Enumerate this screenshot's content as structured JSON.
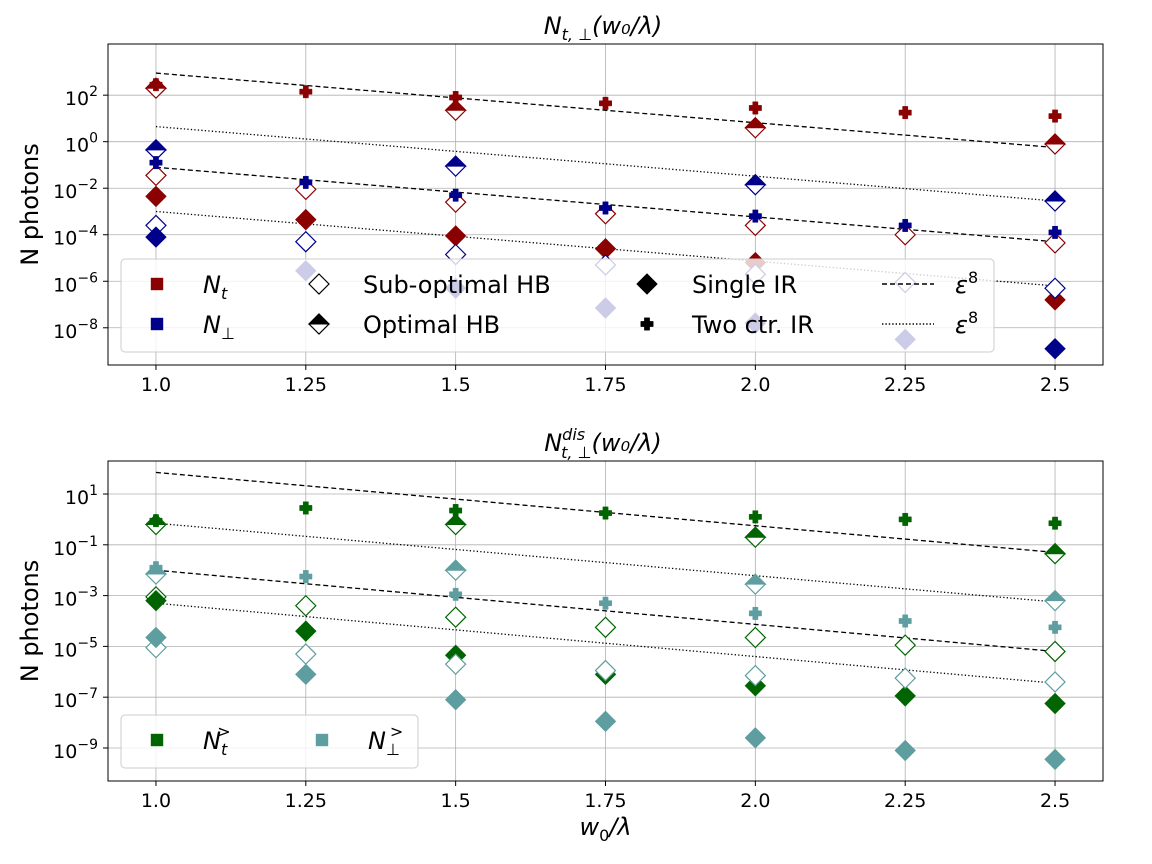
{
  "colors": {
    "t_color": "#8b0000",
    "perp_color": "#00008b",
    "t_dis_color": "#006400",
    "perp_dis_color": "#5f9ea0",
    "grid": "#b0b0b0"
  },
  "chart_data": [
    {
      "type": "scatter",
      "title": "N_{t,⊥}(w₀/λ)",
      "title_parts": {
        "main": "N",
        "sub": "t, ⊥",
        "rest": "(w₀/λ)"
      },
      "xlabel": "",
      "ylabel": "N photons",
      "xscale": "linear",
      "yscale": "log",
      "xlim": [
        0.92,
        2.58
      ],
      "ylim_log10": [
        -9.6,
        4.2
      ],
      "xticks": [
        1.0,
        1.25,
        1.5,
        1.75,
        2.0,
        2.25,
        2.5
      ],
      "xtick_labels": [
        "1.0",
        "1.25",
        "1.5",
        "1.75",
        "2.0",
        "2.25",
        "2.5"
      ],
      "yticks_log10": [
        -8,
        -6,
        -4,
        -2,
        0,
        2
      ],
      "ytick_labels": [
        "10",
        "10",
        "10",
        "10",
        "10",
        "10"
      ],
      "ytick_exponents": [
        "−8",
        "−6",
        "−4",
        "−2",
        "0",
        "2"
      ],
      "grid": true,
      "legend_position": "lower-center",
      "legend": [
        {
          "label": "N_t",
          "main": "N",
          "sub": "t",
          "sup": "",
          "marker": "square",
          "color": "#8b0000"
        },
        {
          "label": "N_⊥",
          "main": "N",
          "sub": "⊥",
          "sup": "",
          "marker": "square",
          "color": "#00008b"
        },
        {
          "label": "Sub-optimal HB",
          "main": "Sub-optimal HB",
          "sub": "",
          "sup": "",
          "marker": "diamond-open",
          "color": "#000000"
        },
        {
          "label": "Optimal HB",
          "main": "Optimal HB",
          "sub": "",
          "sup": "",
          "marker": "diamond-half",
          "color": "#000000"
        },
        {
          "label": "Single IR",
          "main": "Single IR",
          "sub": "",
          "sup": "",
          "marker": "diamond",
          "color": "#000000"
        },
        {
          "label": "Two ctr. IR",
          "main": "Two ctr. IR",
          "sub": "",
          "sup": "",
          "marker": "plus",
          "color": "#000000"
        },
        {
          "label": "ε^8",
          "main": "ε",
          "sub": "",
          "sup": "8",
          "marker": "dashed",
          "color": "#000000"
        },
        {
          "label": "ε^8",
          "main": "ε",
          "sub": "",
          "sup": "8",
          "marker": "dotted",
          "color": "#000000"
        }
      ],
      "series": [
        {
          "name": "N_t Optimal HB",
          "marker": "diamond-half",
          "color": "#8b0000",
          "x": [
            1.0,
            1.5,
            2.0,
            2.5
          ],
          "log10_y": [
            2.3,
            1.35,
            0.6,
            -0.1
          ]
        },
        {
          "name": "N_t Sub-optimal HB",
          "marker": "diamond-open",
          "color": "#8b0000",
          "x": [
            1.0,
            1.25,
            1.5,
            1.75,
            2.0,
            2.25,
            2.5
          ],
          "log10_y": [
            -1.45,
            -2.05,
            -2.6,
            -3.1,
            -3.6,
            -4.0,
            -4.35
          ]
        },
        {
          "name": "N_t Single IR",
          "marker": "diamond",
          "color": "#8b0000",
          "x": [
            1.0,
            1.25,
            1.5,
            1.75,
            2.0,
            2.5
          ],
          "log10_y": [
            -2.35,
            -3.35,
            -4.05,
            -4.6,
            -5.2,
            -6.8
          ]
        },
        {
          "name": "N_t Two ctr. IR",
          "marker": "plus",
          "color": "#8b0000",
          "x": [
            1.0,
            1.25,
            1.5,
            1.75,
            2.0,
            2.25,
            2.5
          ],
          "log10_y": [
            2.45,
            2.15,
            1.9,
            1.65,
            1.45,
            1.25,
            1.1
          ]
        },
        {
          "name": "N_⊥ Optimal HB",
          "marker": "diamond-half",
          "color": "#00008b",
          "x": [
            1.0,
            1.5,
            2.0,
            2.5
          ],
          "log10_y": [
            -0.35,
            -1.05,
            -1.85,
            -2.55
          ]
        },
        {
          "name": "N_⊥ Sub-optimal HB",
          "marker": "diamond-open",
          "color": "#00008b",
          "x": [
            1.0,
            1.25,
            1.5,
            1.75,
            2.0,
            2.25,
            2.5
          ],
          "log10_y": [
            -3.6,
            -4.3,
            -4.85,
            -5.3,
            -5.7,
            -6.05,
            -6.3
          ]
        },
        {
          "name": "N_⊥ Single IR",
          "marker": "diamond",
          "color": "#00008b",
          "x": [
            1.0,
            1.25,
            1.5,
            1.75,
            2.0,
            2.25,
            2.5
          ],
          "log10_y": [
            -4.1,
            -5.55,
            -6.3,
            -7.15,
            -7.8,
            -8.5,
            -8.9
          ]
        },
        {
          "name": "N_⊥ Two ctr. IR",
          "marker": "plus",
          "color": "#00008b",
          "x": [
            1.0,
            1.25,
            1.5,
            1.75,
            2.0,
            2.25,
            2.5
          ],
          "log10_y": [
            -0.9,
            -1.75,
            -2.3,
            -2.85,
            -3.2,
            -3.6,
            -3.9
          ]
        }
      ],
      "lines": [
        {
          "name": "ε^8 dashed upper",
          "style": "dashed",
          "x": [
            1.0,
            2.5
          ],
          "log10_y": [
            2.95,
            -0.25
          ]
        },
        {
          "name": "ε^8 dotted upper",
          "style": "dotted",
          "x": [
            1.0,
            2.5
          ],
          "log10_y": [
            0.65,
            -2.55
          ]
        },
        {
          "name": "ε^8 dashed lower",
          "style": "dashed",
          "x": [
            1.0,
            2.5
          ],
          "log10_y": [
            -1.1,
            -4.3
          ]
        },
        {
          "name": "ε^8 dotted lower",
          "style": "dotted",
          "x": [
            1.0,
            2.5
          ],
          "log10_y": [
            -3.0,
            -6.2
          ]
        }
      ]
    },
    {
      "type": "scatter",
      "title": "N^{dis}_{t,⊥}(w₀/λ)",
      "title_parts": {
        "main": "N",
        "sub": "t, ⊥",
        "sup": "dis",
        "rest": "(w₀/λ)"
      },
      "xlabel": "w₀/λ",
      "xlabel_parts": {
        "main": "w",
        "sub": "0",
        "rest": "/λ"
      },
      "ylabel": "N photons",
      "xscale": "linear",
      "yscale": "log",
      "xlim": [
        0.92,
        2.58
      ],
      "ylim_log10": [
        -10.3,
        2.3
      ],
      "xticks": [
        1.0,
        1.25,
        1.5,
        1.75,
        2.0,
        2.25,
        2.5
      ],
      "xtick_labels": [
        "1.0",
        "1.25",
        "1.5",
        "1.75",
        "2.0",
        "2.25",
        "2.5"
      ],
      "yticks_log10": [
        -9,
        -7,
        -5,
        -3,
        -1,
        1
      ],
      "ytick_labels": [
        "10",
        "10",
        "10",
        "10",
        "10",
        "10"
      ],
      "ytick_exponents": [
        "−9",
        "−7",
        "−5",
        "−3",
        "−1",
        "1"
      ],
      "grid": true,
      "legend_position": "lower-left",
      "legend": [
        {
          "label": "N_t^>",
          "main": "N",
          "sub": "t",
          "sup": ">",
          "marker": "square",
          "color": "#006400"
        },
        {
          "label": "N_⊥^>",
          "main": "N",
          "sub": "⊥",
          "sup": ">",
          "marker": "square",
          "color": "#5f9ea0"
        }
      ],
      "series": [
        {
          "name": "N_t^> Optimal HB",
          "marker": "diamond-half",
          "color": "#006400",
          "x": [
            1.0,
            1.5,
            2.0,
            2.5
          ],
          "log10_y": [
            -0.2,
            -0.2,
            -0.7,
            -1.35
          ]
        },
        {
          "name": "N_t^> Sub-optimal HB",
          "marker": "diamond-open",
          "color": "#006400",
          "x": [
            1.0,
            1.25,
            1.5,
            1.75,
            2.0,
            2.25,
            2.5
          ],
          "log10_y": [
            -3.05,
            -3.4,
            -3.85,
            -4.25,
            -4.65,
            -4.95,
            -5.2
          ]
        },
        {
          "name": "N_t^> Single IR",
          "marker": "diamond",
          "color": "#006400",
          "x": [
            1.0,
            1.25,
            1.5,
            1.75,
            2.0,
            2.25,
            2.5
          ],
          "log10_y": [
            -3.2,
            -4.4,
            -5.35,
            -6.1,
            -6.55,
            -6.95,
            -7.25
          ]
        },
        {
          "name": "N_t^> Two ctr. IR",
          "marker": "plus",
          "color": "#006400",
          "x": [
            1.0,
            1.25,
            1.5,
            1.75,
            2.0,
            2.25,
            2.5
          ],
          "log10_y": [
            -0.05,
            0.45,
            0.35,
            0.25,
            0.1,
            0.0,
            -0.15
          ]
        },
        {
          "name": "N_⊥^> Optimal HB",
          "marker": "diamond-half",
          "color": "#5f9ea0",
          "x": [
            1.0,
            1.5,
            2.0,
            2.5
          ],
          "log10_y": [
            -2.15,
            -2.0,
            -2.55,
            -3.2
          ]
        },
        {
          "name": "N_⊥^> Sub-optimal HB",
          "marker": "diamond-open",
          "color": "#5f9ea0",
          "x": [
            1.0,
            1.25,
            1.5,
            1.75,
            2.0,
            2.25,
            2.5
          ],
          "log10_y": [
            -5.05,
            -5.3,
            -5.7,
            -5.95,
            -6.15,
            -6.25,
            -6.4
          ]
        },
        {
          "name": "N_⊥^> Single IR",
          "marker": "diamond",
          "color": "#5f9ea0",
          "x": [
            1.0,
            1.25,
            1.5,
            1.75,
            2.0,
            2.25,
            2.5
          ],
          "log10_y": [
            -4.65,
            -6.1,
            -7.1,
            -7.95,
            -8.6,
            -9.1,
            -9.45
          ]
        },
        {
          "name": "N_⊥^> Two ctr. IR",
          "marker": "plus",
          "color": "#5f9ea0",
          "x": [
            1.0,
            1.25,
            1.5,
            1.75,
            2.0,
            2.25,
            2.5
          ],
          "log10_y": [
            -1.9,
            -2.25,
            -2.95,
            -3.3,
            -3.7,
            -4.0,
            -4.25
          ]
        }
      ],
      "lines": [
        {
          "name": "ε^8 dashed upper",
          "style": "dashed",
          "x": [
            1.0,
            2.5
          ],
          "log10_y": [
            1.85,
            -1.3
          ]
        },
        {
          "name": "ε^8 dotted upper",
          "style": "dotted",
          "x": [
            1.0,
            2.5
          ],
          "log10_y": [
            -0.15,
            -3.25
          ]
        },
        {
          "name": "ε^8 dashed lower",
          "style": "dashed",
          "x": [
            1.0,
            2.5
          ],
          "log10_y": [
            -2.0,
            -5.2
          ]
        },
        {
          "name": "ε^8 dotted lower",
          "style": "dotted",
          "x": [
            1.0,
            2.5
          ],
          "log10_y": [
            -3.3,
            -6.45
          ]
        }
      ]
    }
  ]
}
